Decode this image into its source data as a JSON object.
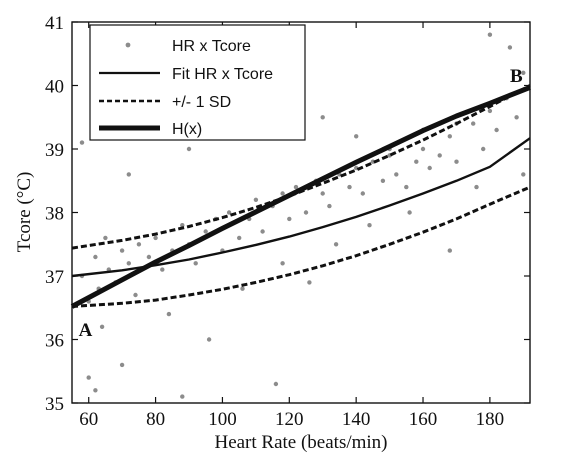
{
  "chart_data": {
    "type": "scatter",
    "xlabel": "Heart Rate (beats/min)",
    "ylabel": "Tcore (°C)",
    "xlim": [
      55,
      192
    ],
    "ylim": [
      35,
      41
    ],
    "xticks": [
      60,
      80,
      100,
      120,
      140,
      160,
      180
    ],
    "yticks": [
      35,
      36,
      37,
      38,
      39,
      40,
      41
    ],
    "grid": false,
    "legend": {
      "placement": "top-left",
      "entries": [
        "HR x Tcore",
        "Fit HR x Tcore",
        "+/- 1 SD",
        "H(x)"
      ]
    },
    "series": [
      {
        "name": "HR x Tcore",
        "kind": "scatter",
        "color": "#8c8c8c",
        "x": [
          58,
          60,
          62,
          63,
          65,
          66,
          68,
          70,
          72,
          74,
          75,
          78,
          80,
          82,
          85,
          88,
          90,
          92,
          95,
          98,
          100,
          102,
          105,
          108,
          110,
          112,
          115,
          118,
          120,
          122,
          125,
          128,
          130,
          132,
          135,
          138,
          140,
          142,
          145,
          148,
          150,
          152,
          155,
          158,
          160,
          162,
          165,
          168,
          170,
          175,
          178,
          180,
          182,
          185,
          188,
          190,
          64,
          70,
          84,
          96,
          106,
          118,
          126,
          134,
          144,
          156,
          176,
          186,
          58,
          60,
          72,
          90,
          100,
          110,
          120,
          130,
          140,
          150,
          160,
          170,
          180,
          190,
          62,
          88,
          116,
          168
        ],
        "y": [
          37.0,
          36.6,
          37.3,
          36.8,
          37.6,
          37.1,
          36.9,
          37.4,
          37.2,
          36.7,
          37.5,
          37.3,
          37.6,
          37.1,
          37.4,
          37.8,
          37.5,
          37.2,
          37.7,
          37.9,
          37.4,
          38.0,
          37.6,
          37.9,
          38.2,
          37.7,
          38.1,
          38.3,
          37.9,
          38.4,
          38.0,
          38.5,
          38.3,
          38.1,
          38.6,
          38.4,
          38.7,
          38.3,
          38.8,
          38.5,
          38.9,
          38.6,
          38.4,
          38.8,
          39.0,
          38.7,
          38.9,
          39.2,
          38.8,
          39.4,
          39.0,
          39.6,
          39.3,
          39.8,
          39.5,
          40.2,
          36.2,
          35.6,
          36.4,
          36.0,
          36.8,
          37.2,
          36.9,
          37.5,
          37.8,
          38.0,
          38.4,
          40.6,
          39.1,
          35.4,
          38.6,
          39.0,
          39.2,
          39.3,
          39.4,
          39.5,
          39.2,
          39.0,
          39.3,
          39.4,
          40.8,
          38.6,
          35.2,
          35.1,
          35.3,
          37.4
        ]
      },
      {
        "name": "Fit HR x Tcore",
        "kind": "line",
        "x": [
          55,
          70,
          80,
          90,
          100,
          110,
          120,
          130,
          140,
          150,
          160,
          170,
          180,
          192
        ],
        "y": [
          37.0,
          37.09,
          37.17,
          37.26,
          37.37,
          37.49,
          37.62,
          37.77,
          37.93,
          38.11,
          38.3,
          38.5,
          38.72,
          39.17
        ]
      },
      {
        "name": "+/- 1 SD",
        "kind": "line",
        "style": "dashed",
        "x": [
          55,
          70,
          80,
          90,
          100,
          110,
          120,
          130,
          140,
          150,
          160,
          170,
          180,
          192
        ],
        "y": [
          37.44,
          37.56,
          37.66,
          37.78,
          37.92,
          38.08,
          38.26,
          38.46,
          38.67,
          38.9,
          39.14,
          39.4,
          39.67,
          40.0
        ]
      },
      {
        "kind": "line",
        "style": "dashed",
        "x": [
          55,
          70,
          80,
          90,
          100,
          110,
          120,
          130,
          140,
          150,
          160,
          170,
          180,
          192
        ],
        "y": [
          36.52,
          36.57,
          36.62,
          36.7,
          36.79,
          36.9,
          37.02,
          37.16,
          37.32,
          37.5,
          37.69,
          37.9,
          38.13,
          38.4
        ]
      },
      {
        "name": "H(x)",
        "kind": "line",
        "style": "thick",
        "x": [
          55,
          70,
          80,
          90,
          100,
          110,
          120,
          130,
          140,
          150,
          160,
          170,
          180,
          192
        ],
        "y": [
          36.52,
          36.94,
          37.22,
          37.48,
          37.75,
          38.01,
          38.27,
          38.53,
          38.79,
          39.04,
          39.29,
          39.52,
          39.72,
          39.97
        ]
      }
    ],
    "annotations": [
      {
        "text": "A",
        "x": 57,
        "y": 36.15
      },
      {
        "text": "B",
        "x": 186,
        "y": 40.15
      }
    ]
  }
}
